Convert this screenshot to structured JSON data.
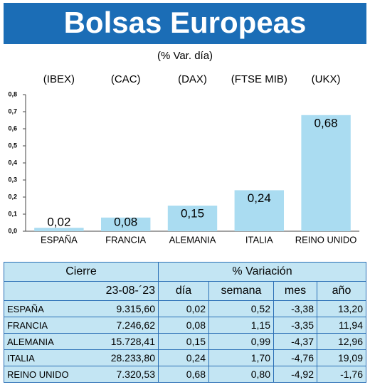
{
  "chart_data": {
    "type": "bar",
    "title": "Bolsas Europeas",
    "subtitle": "(% Var. día)",
    "index_labels": [
      "(IBEX)",
      "(CAC)",
      "(DAX)",
      "(FTSE MIB)",
      "(UKX)"
    ],
    "categories": [
      "ESPAÑA",
      "FRANCIA",
      "ALEMANIA",
      "ITALIA",
      "REINO UNIDO"
    ],
    "values": [
      0.02,
      0.08,
      0.15,
      0.24,
      0.68
    ],
    "value_labels": [
      "0,02",
      "0,08",
      "0,15",
      "0,24",
      "0,68"
    ],
    "color": "#aadcf1",
    "ylim": [
      0,
      0.8
    ],
    "yticks": [
      {
        "value": 0,
        "label": "0,0"
      },
      {
        "value": 0.1,
        "label": "0,1"
      },
      {
        "value": 0.2,
        "label": "0,2"
      },
      {
        "value": 0.3,
        "label": "0,3"
      },
      {
        "value": 0.4,
        "label": "0,4"
      },
      {
        "value": 0.5,
        "label": "0,5"
      },
      {
        "value": 0.6,
        "label": "0,6"
      },
      {
        "value": 0.7,
        "label": "0,7"
      },
      {
        "value": 0.8,
        "label": "0,8"
      }
    ],
    "grid": false
  },
  "table": {
    "header_top": [
      "Cierre",
      "% Variación"
    ],
    "header": [
      "23-08-´23",
      "día",
      "semana",
      "mes",
      "año"
    ],
    "rows": [
      [
        "ESPAÑA",
        "9.315,60",
        "0,02",
        "0,52",
        "-3,38",
        "13,20"
      ],
      [
        "FRANCIA",
        "7.246,62",
        "0,08",
        "1,15",
        "-3,35",
        "11,94"
      ],
      [
        "ALEMANIA",
        "15.728,41",
        "0,15",
        "0,99",
        "-4,37",
        "12,96"
      ],
      [
        "ITALIA",
        "28.233,80",
        "0,24",
        "1,70",
        "-4,76",
        "19,09"
      ],
      [
        "REINO UNIDO",
        "7.320,53",
        "0,68",
        "0,80",
        "-4,92",
        "-1,76"
      ]
    ]
  }
}
